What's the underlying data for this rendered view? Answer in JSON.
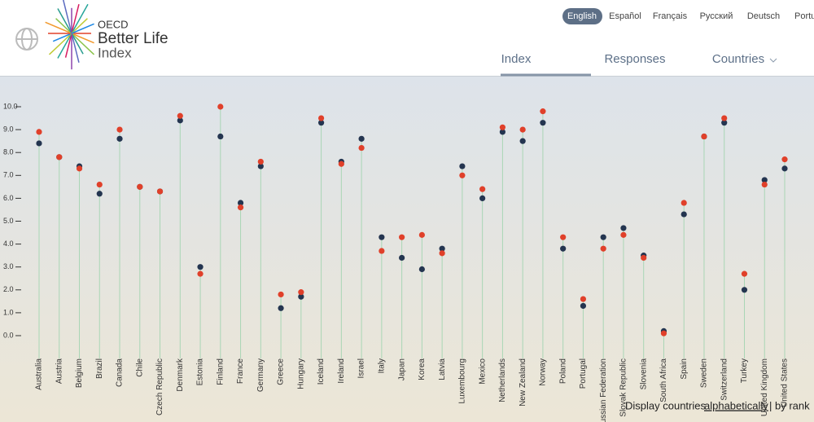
{
  "header": {
    "logo": {
      "org": "OECD",
      "line1": "Better Life",
      "line2": "Index"
    },
    "languages": [
      "English",
      "Español",
      "Français",
      "Русский",
      "Deutsch",
      "Português"
    ],
    "nav": [
      "Index",
      "Responses",
      "Countries"
    ]
  },
  "chart_data": {
    "type": "dot",
    "categories": [
      "Australia",
      "Austria",
      "Belgium",
      "Brazil",
      "Canada",
      "Chile",
      "Czech Republic",
      "Denmark",
      "Estonia",
      "Finland",
      "France",
      "Germany",
      "Greece",
      "Hungary",
      "Iceland",
      "Ireland",
      "Israel",
      "Italy",
      "Japan",
      "Korea",
      "Latvia",
      "Luxembourg",
      "Mexico",
      "Netherlands",
      "New Zealand",
      "Norway",
      "Poland",
      "Portugal",
      "Russian Federation",
      "Slovak Republic",
      "Slovenia",
      "South Africa",
      "Spain",
      "Sweden",
      "Switzerland",
      "Turkey",
      "United Kingdom",
      "United States"
    ],
    "series": [
      {
        "color": "#243550",
        "values": [
          8.4,
          7.8,
          7.4,
          6.2,
          8.6,
          6.5,
          6.3,
          9.4,
          3.0,
          8.7,
          5.8,
          7.4,
          1.2,
          1.7,
          9.3,
          7.6,
          8.6,
          4.3,
          3.4,
          2.9,
          3.8,
          7.4,
          6.0,
          8.9,
          8.5,
          9.3,
          3.8,
          1.3,
          4.3,
          4.7,
          3.5,
          0.2,
          5.3,
          8.7,
          9.3,
          2.0,
          6.8,
          7.3
        ]
      },
      {
        "color": "#e0402a",
        "values": [
          8.9,
          7.8,
          7.3,
          6.6,
          9.0,
          6.5,
          6.3,
          9.6,
          2.7,
          10.0,
          5.6,
          7.6,
          1.8,
          1.9,
          9.5,
          7.5,
          8.2,
          3.7,
          4.3,
          4.4,
          3.6,
          7.0,
          6.4,
          9.1,
          9.0,
          9.8,
          4.3,
          1.6,
          3.8,
          4.4,
          3.4,
          0.1,
          5.8,
          8.7,
          9.5,
          2.7,
          6.6,
          7.7
        ]
      }
    ],
    "ylim": [
      0,
      10
    ],
    "yticks": [
      {
        "value": 0,
        "label": "0.0"
      },
      {
        "value": 1,
        "label": "1.0"
      },
      {
        "value": 2,
        "label": "2.0"
      },
      {
        "value": 3,
        "label": "3.0"
      },
      {
        "value": 4,
        "label": "4.0"
      },
      {
        "value": 5,
        "label": "5.0"
      },
      {
        "value": 6,
        "label": "6.0"
      },
      {
        "value": 7,
        "label": "7.0"
      },
      {
        "value": 8,
        "label": "8.0"
      },
      {
        "value": 9,
        "label": "9.0"
      },
      {
        "value": 10,
        "label": "10.0"
      }
    ]
  },
  "footer": {
    "prefix": "Display countries",
    "alpha": "alphabetically",
    "sep": "|",
    "rank": "by rank"
  }
}
